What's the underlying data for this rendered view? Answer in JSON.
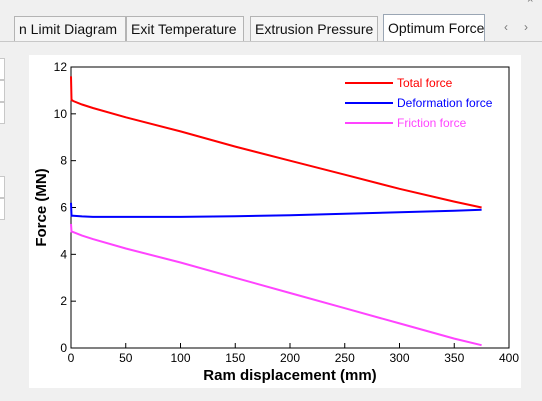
{
  "tabs": [
    {
      "label": "n Limit Diagram",
      "active": false
    },
    {
      "label": "Exit Temperature",
      "active": false
    },
    {
      "label": "Extrusion Pressure",
      "active": false
    },
    {
      "label": "Optimum Force",
      "active": true
    }
  ],
  "nav": {
    "prev_icon": "chevron-left-icon",
    "next_icon": "chevron-right-icon",
    "close_icon": "close-icon"
  },
  "chart_data": {
    "type": "line",
    "title": "",
    "xlabel": "Ram displacement (mm)",
    "ylabel": "Force (MN)",
    "xlim": [
      0,
      400
    ],
    "ylim": [
      0,
      12
    ],
    "xticks": [
      0,
      50,
      100,
      150,
      200,
      250,
      300,
      350,
      400
    ],
    "yticks": [
      0,
      2,
      4,
      6,
      8,
      10,
      12
    ],
    "grid": false,
    "legend_position": "top-right",
    "series": [
      {
        "name": "Total force",
        "color": "#ff0000",
        "x": [
          0,
          0.5,
          2,
          10,
          20,
          50,
          100,
          150,
          200,
          250,
          300,
          350,
          375
        ],
        "y": [
          11.6,
          10.6,
          10.55,
          10.4,
          10.25,
          9.85,
          9.25,
          8.6,
          8.0,
          7.4,
          6.8,
          6.25,
          6.0
        ]
      },
      {
        "name": "Deformation force",
        "color": "#0000ff",
        "x": [
          0,
          0.5,
          2,
          10,
          20,
          50,
          100,
          150,
          200,
          250,
          300,
          350,
          375
        ],
        "y": [
          6.2,
          5.65,
          5.65,
          5.62,
          5.6,
          5.6,
          5.6,
          5.63,
          5.67,
          5.73,
          5.8,
          5.86,
          5.9
        ]
      },
      {
        "name": "Friction force",
        "color": "#ff44ff",
        "x": [
          0,
          0.5,
          2,
          10,
          20,
          50,
          100,
          150,
          200,
          250,
          300,
          350,
          375
        ],
        "y": [
          5.3,
          4.97,
          4.95,
          4.8,
          4.65,
          4.25,
          3.65,
          3.0,
          2.35,
          1.7,
          1.05,
          0.4,
          0.12
        ]
      }
    ]
  }
}
